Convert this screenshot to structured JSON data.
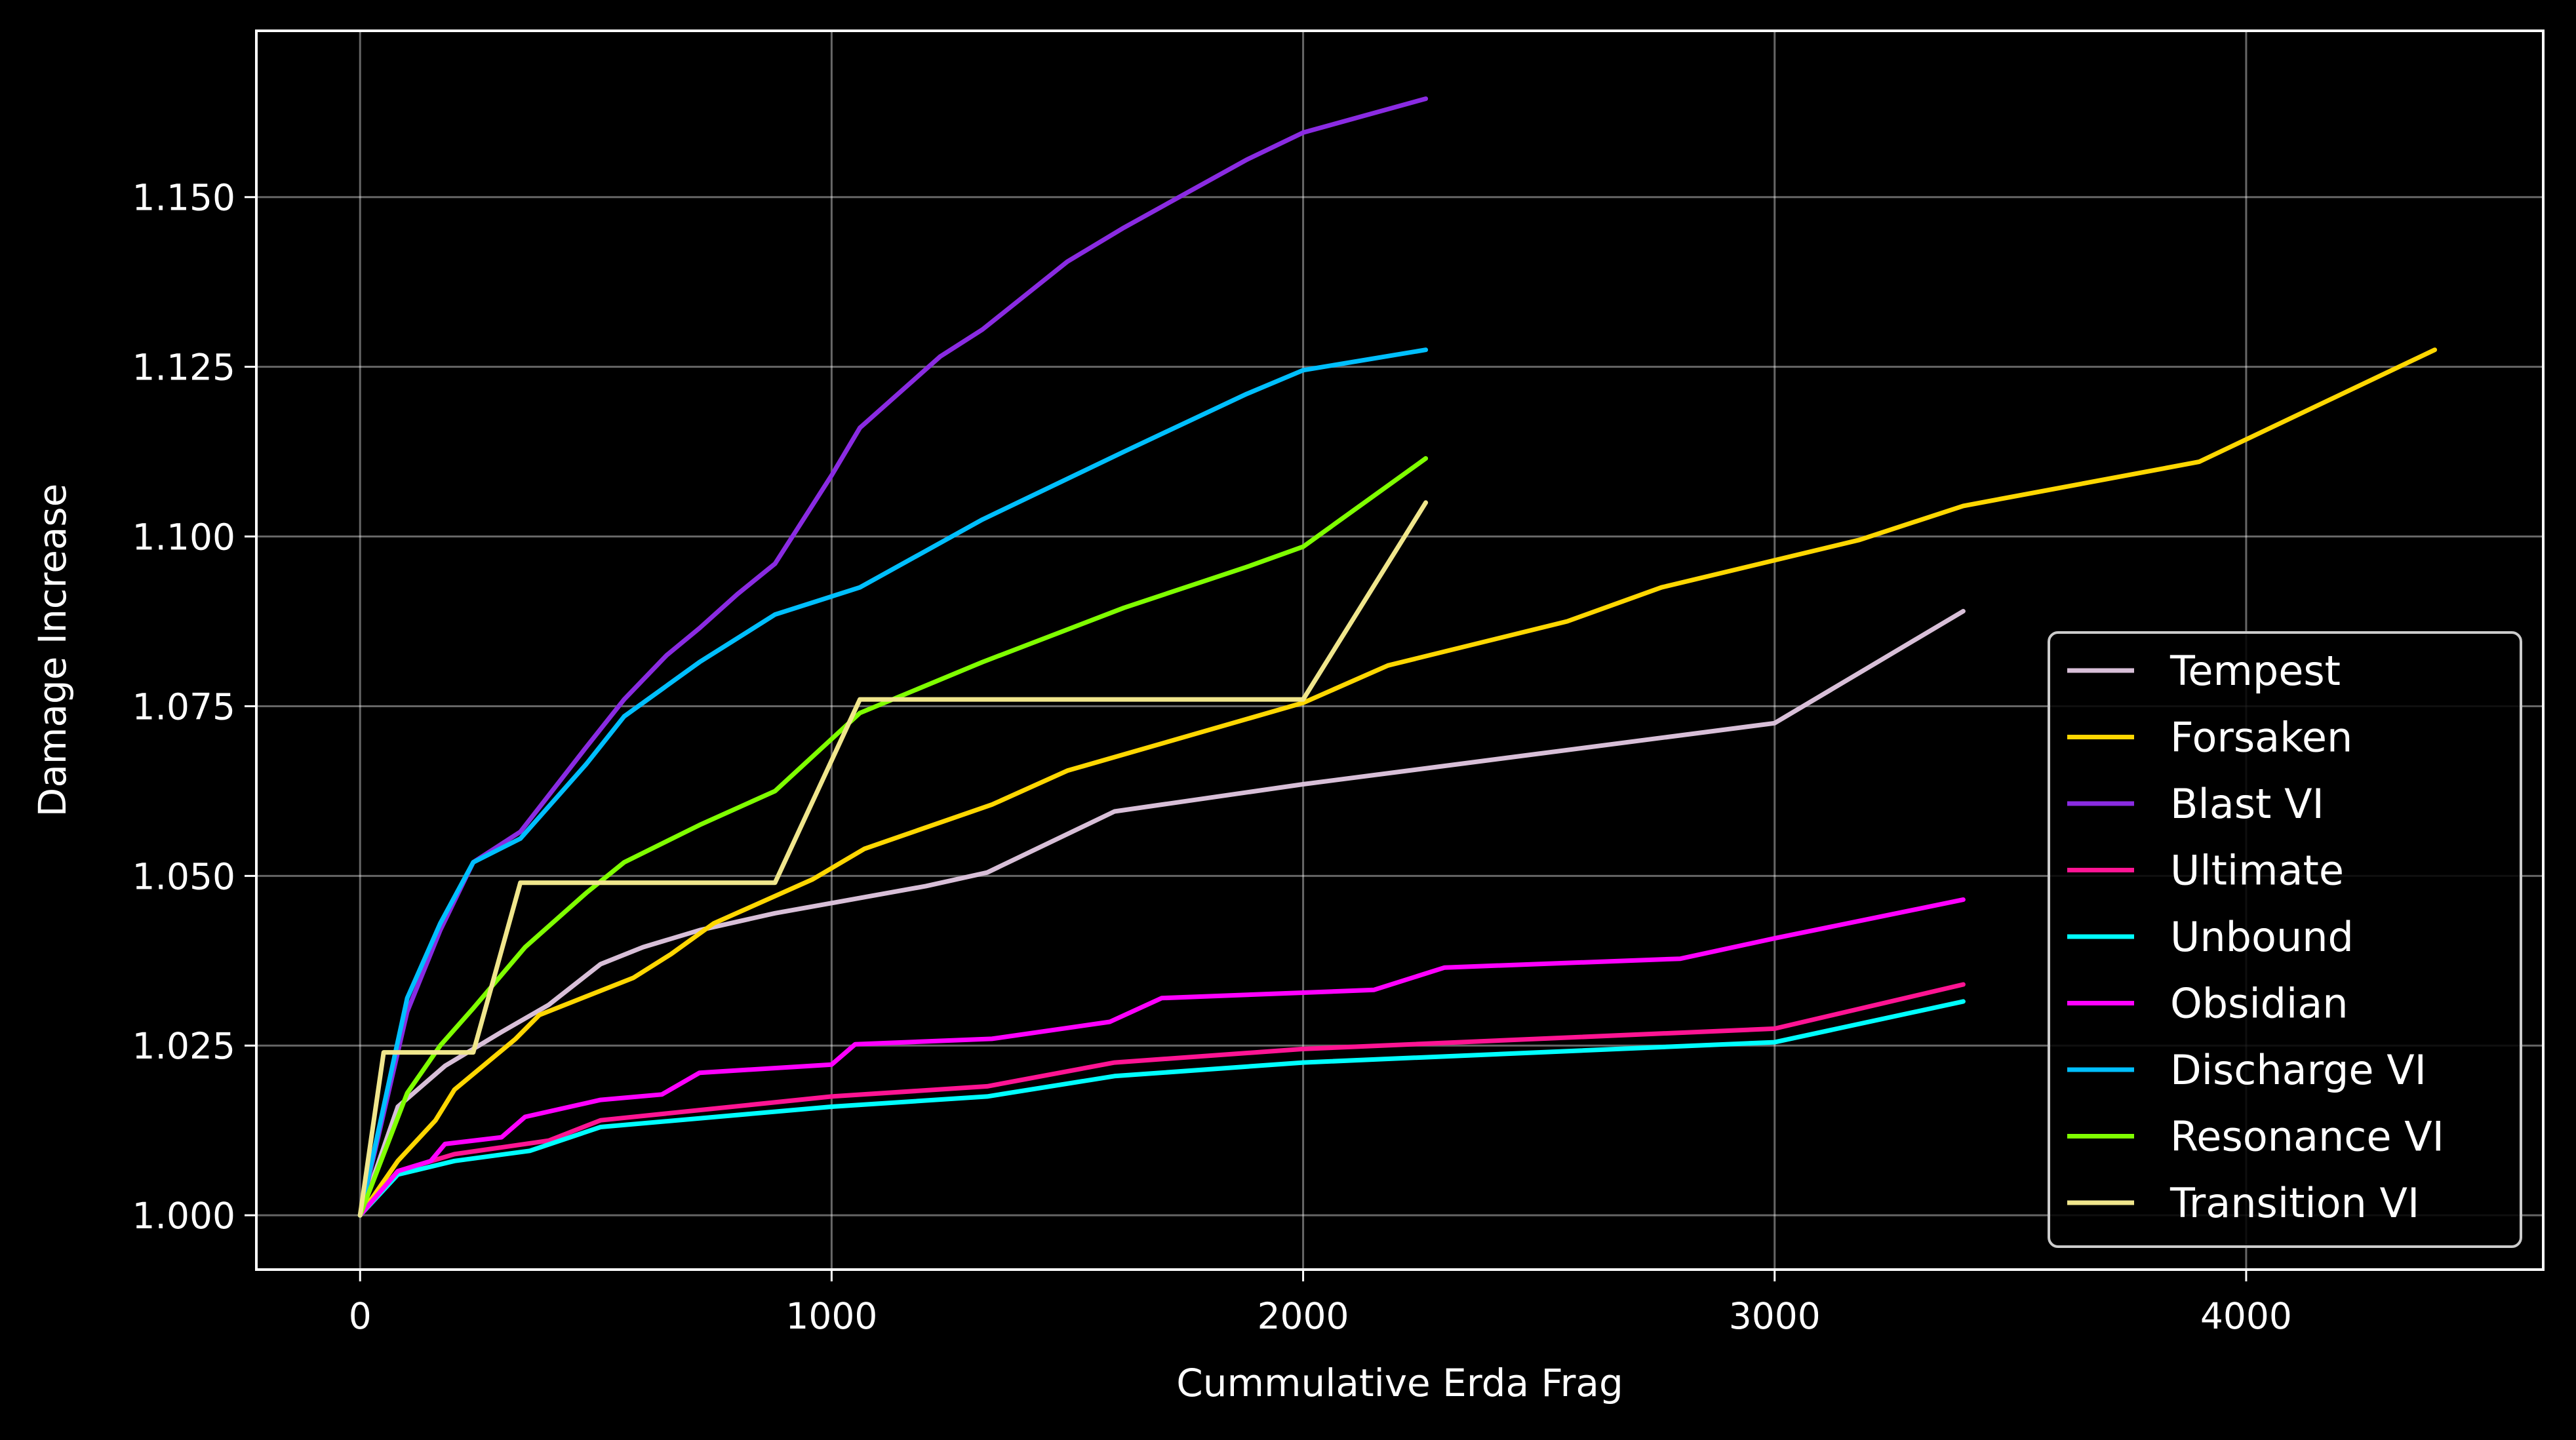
{
  "chart_data": {
    "type": "line",
    "title": "",
    "xlabel": "Cummulative Erda Frag",
    "ylabel": "Damage Increase",
    "xlim": [
      -220,
      4630
    ],
    "ylim": [
      0.992,
      1.1745
    ],
    "x_ticks": [
      0,
      1000,
      2000,
      3000,
      4000
    ],
    "x_tick_labels": [
      "0",
      "1000",
      "2000",
      "3000",
      "4000"
    ],
    "y_ticks": [
      1.0,
      1.025,
      1.05,
      1.075,
      1.1,
      1.125,
      1.15
    ],
    "y_tick_labels": [
      "1.000",
      "1.025",
      "1.050",
      "1.075",
      "1.100",
      "1.125",
      "1.150"
    ],
    "grid": true,
    "legend_position": "lower-right",
    "background": "#000000",
    "series": [
      {
        "name": "Tempest",
        "color": "#d8bfd8",
        "x": [
          0,
          80,
          180,
          300,
          400,
          510,
          600,
          720,
          880,
          1000,
          1200,
          1330,
          1600,
          2000,
          2500,
          3000,
          3400
        ],
        "y": [
          1.0,
          1.016,
          1.022,
          1.027,
          1.031,
          1.037,
          1.0395,
          1.042,
          1.0445,
          1.046,
          1.0485,
          1.0505,
          1.0595,
          1.0635,
          1.068,
          1.0725,
          1.089
        ]
      },
      {
        "name": "Forsaken",
        "color": "#ffd700",
        "x": [
          0,
          80,
          160,
          200,
          330,
          380,
          580,
          660,
          750,
          960,
          1070,
          1340,
          1500,
          2000,
          2180,
          2560,
          2760,
          3180,
          3400,
          3900,
          4400
        ],
        "y": [
          1.0,
          1.008,
          1.014,
          1.0185,
          1.026,
          1.0295,
          1.035,
          1.0385,
          1.043,
          1.0495,
          1.054,
          1.0605,
          1.0655,
          1.0755,
          1.081,
          1.0875,
          1.0925,
          1.0995,
          1.1045,
          1.111,
          1.1275
        ]
      },
      {
        "name": "Blast VI",
        "color": "#8a2be2",
        "x": [
          0,
          100,
          170,
          240,
          340,
          480,
          560,
          650,
          720,
          800,
          880,
          1000,
          1060,
          1230,
          1320,
          1500,
          1620,
          1880,
          2000,
          2260
        ],
        "y": [
          1.0,
          1.03,
          1.042,
          1.052,
          1.0565,
          1.069,
          1.076,
          1.0825,
          1.0865,
          1.0915,
          1.096,
          1.109,
          1.116,
          1.1265,
          1.1305,
          1.1405,
          1.1455,
          1.1555,
          1.1595,
          1.1645
        ]
      },
      {
        "name": "Ultimate",
        "color": "#ff1493",
        "x": [
          0,
          80,
          200,
          400,
          510,
          1000,
          1330,
          1600,
          2000,
          2500,
          3000,
          3400
        ],
        "y": [
          1.0,
          1.0065,
          1.009,
          1.011,
          1.014,
          1.0175,
          1.019,
          1.0225,
          1.0245,
          1.026,
          1.0275,
          1.034
        ]
      },
      {
        "name": "Unbound",
        "color": "#00ffff",
        "x": [
          0,
          80,
          200,
          360,
          510,
          1000,
          1330,
          1600,
          2000,
          2500,
          3000,
          3400
        ],
        "y": [
          1.0,
          1.006,
          1.008,
          1.0095,
          1.013,
          1.016,
          1.0175,
          1.0205,
          1.0225,
          1.024,
          1.0255,
          1.0315
        ]
      },
      {
        "name": "Obsidian",
        "color": "#ff00ff",
        "x": [
          0,
          80,
          150,
          180,
          300,
          350,
          510,
          640,
          720,
          1000,
          1050,
          1340,
          1590,
          1700,
          2000,
          2150,
          2300,
          2800,
          3000,
          3400
        ],
        "y": [
          1.0,
          1.0065,
          1.008,
          1.0105,
          1.0115,
          1.0145,
          1.017,
          1.0178,
          1.021,
          1.0222,
          1.0252,
          1.026,
          1.0285,
          1.032,
          1.0328,
          1.0332,
          1.0365,
          1.0378,
          1.0408,
          1.0465
        ]
      },
      {
        "name": "Discharge VI",
        "color": "#00bfff",
        "x": [
          0,
          100,
          170,
          240,
          340,
          480,
          560,
          720,
          880,
          1060,
          1320,
          1620,
          1880,
          2000,
          2260
        ],
        "y": [
          1.0,
          1.032,
          1.043,
          1.052,
          1.0555,
          1.0665,
          1.0735,
          1.0815,
          1.0885,
          1.0925,
          1.1025,
          1.1125,
          1.121,
          1.1245,
          1.1275
        ]
      },
      {
        "name": "Resonance VI",
        "color": "#7fff00",
        "x": [
          0,
          100,
          170,
          240,
          350,
          480,
          560,
          720,
          880,
          1060,
          1320,
          1620,
          1880,
          2000,
          2260
        ],
        "y": [
          1.0,
          1.018,
          1.025,
          1.0305,
          1.0395,
          1.0475,
          1.052,
          1.0575,
          1.0625,
          1.074,
          1.0815,
          1.0895,
          1.0955,
          1.0985,
          1.1115
        ]
      },
      {
        "name": "Transition VI",
        "color": "#f0e68c",
        "x": [
          0,
          50,
          240,
          340,
          880,
          1060,
          2000,
          2260
        ],
        "y": [
          1.0,
          1.024,
          1.024,
          1.049,
          1.049,
          1.076,
          1.076,
          1.105
        ]
      }
    ]
  }
}
